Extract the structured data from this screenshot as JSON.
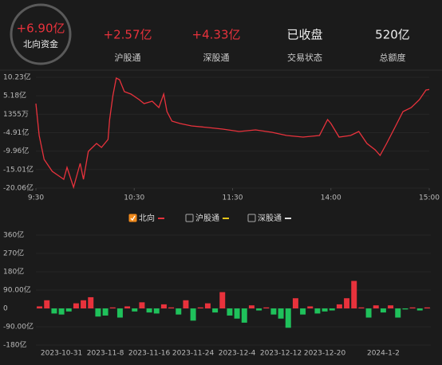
{
  "header": {
    "main": {
      "value": "+6.90亿",
      "label": "北向资金"
    },
    "stats": [
      {
        "value": "+2.57亿",
        "label": "沪股通"
      },
      {
        "value": "+4.33亿",
        "label": "深股通"
      },
      {
        "value": "已收盘",
        "label": "交易状态"
      },
      {
        "value": "520亿",
        "label": "总额度"
      }
    ]
  },
  "legend": [
    {
      "label": "北向",
      "color": "#e8323c",
      "checked": true
    },
    {
      "label": "沪股通",
      "color": "#e6c619",
      "checked": false
    },
    {
      "label": "深股通",
      "color": "#dddddd",
      "checked": false
    }
  ],
  "chart_data": [
    {
      "type": "line",
      "color": "#e8323c",
      "x": [
        0,
        2,
        5,
        10,
        17,
        19,
        23,
        27,
        29,
        32,
        37,
        40,
        44,
        45,
        47,
        49,
        51,
        54,
        58,
        63,
        66,
        71,
        75,
        78,
        80,
        83,
        88,
        95,
        105,
        114,
        124,
        134,
        144,
        153,
        163,
        173,
        178,
        180,
        185,
        192,
        197,
        202,
        207,
        210,
        214,
        219,
        224,
        229,
        234,
        238,
        240
      ],
      "values": [
        3.04,
        -5.67,
        -12.21,
        -15.48,
        -17.66,
        -14.39,
        -19.84,
        -13.3,
        -17.66,
        -10.03,
        -7.85,
        -8.94,
        -6.76,
        -1.32,
        5.22,
        10.01,
        9.58,
        6.31,
        5.66,
        4.13,
        3.04,
        3.7,
        1.95,
        5.66,
        0.86,
        -1.75,
        -2.41,
        -3.06,
        -3.5,
        -3.93,
        -4.58,
        -4.15,
        -4.8,
        -5.67,
        -6.11,
        -5.67,
        -1.32,
        -2.41,
        -6.11,
        -5.67,
        -4.58,
        -7.85,
        -9.6,
        -11.12,
        -7.85,
        -3.5,
        0.86,
        1.95,
        4.13,
        6.74,
        6.9
      ],
      "xlim": [
        0,
        240
      ],
      "xticks": [
        {
          "value": 0,
          "label": "9:30"
        },
        {
          "value": 60,
          "label": "10:30"
        },
        {
          "value": 120,
          "label": "11:30"
        },
        {
          "value": 180,
          "label": "14:00"
        },
        {
          "value": 240,
          "label": "15:00"
        }
      ],
      "ylim": [
        -20.06,
        10.23
      ],
      "yticks": [
        {
          "value": 10.23,
          "label": "10.23亿"
        },
        {
          "value": 5.18,
          "label": "5.18亿"
        },
        {
          "value": 0.1355,
          "label": "1355万"
        },
        {
          "value": -4.91,
          "label": "-4.91亿"
        },
        {
          "value": -9.96,
          "label": "-9.96亿"
        },
        {
          "value": -15.01,
          "label": "-15.01亿"
        },
        {
          "value": -20.06,
          "label": "-20.06亿"
        }
      ]
    },
    {
      "type": "bar",
      "pos_color": "#e8323c",
      "neg_color": "#1fc15b",
      "categories": [
        null,
        null,
        null,
        "2023-10-31",
        null,
        null,
        null,
        null,
        null,
        "2023-11-8",
        null,
        null,
        null,
        null,
        null,
        "2023-11-16",
        null,
        null,
        null,
        null,
        null,
        "2023-11-24",
        null,
        null,
        null,
        null,
        null,
        "2023-12-4",
        null,
        null,
        null,
        null,
        null,
        "2023-12-12",
        null,
        null,
        null,
        null,
        null,
        "2023-12-20",
        null,
        null,
        null,
        null,
        null,
        null,
        null,
        "2024-1-2",
        null,
        null,
        null,
        null,
        null,
        null
      ],
      "values": [
        10,
        40,
        -25,
        -30,
        -15,
        25,
        40,
        55,
        -40,
        -35,
        5,
        -45,
        10,
        -15,
        30,
        -20,
        -25,
        20,
        5,
        -30,
        40,
        -60,
        5,
        25,
        -20,
        80,
        -35,
        -50,
        -70,
        15,
        -10,
        5,
        -30,
        -50,
        -95,
        50,
        -30,
        10,
        -25,
        -15,
        -10,
        20,
        50,
        135,
        5,
        -45,
        15,
        -20,
        15,
        -45,
        -5,
        5,
        -10,
        5
      ],
      "ylim": [
        -180,
        360
      ],
      "yticks": [
        {
          "value": 360,
          "label": "360亿"
        },
        {
          "value": 270,
          "label": "270亿"
        },
        {
          "value": 180,
          "label": "180亿"
        },
        {
          "value": 90,
          "label": "90.00亿"
        },
        0,
        {
          "value": -90,
          "label": "-90.00亿"
        },
        {
          "value": -180,
          "label": "-180亿"
        }
      ]
    }
  ]
}
